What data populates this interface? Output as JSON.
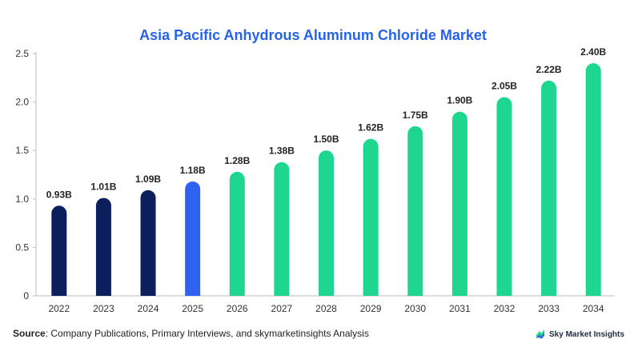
{
  "chart_data": {
    "type": "bar",
    "title": "Asia Pacific Anhydrous Aluminum Chloride Market",
    "xlabel": "",
    "ylabel": "",
    "categories": [
      "2022",
      "2023",
      "2024",
      "2025",
      "2026",
      "2027",
      "2028",
      "2029",
      "2030",
      "2031",
      "2032",
      "2033",
      "2034"
    ],
    "values": [
      0.93,
      1.01,
      1.09,
      1.18,
      1.28,
      1.38,
      1.5,
      1.62,
      1.75,
      1.9,
      2.05,
      2.22,
      2.4
    ],
    "value_labels": [
      "0.93B",
      "1.01B",
      "1.09B",
      "1.18B",
      "1.28B",
      "1.38B",
      "1.50B",
      "1.62B",
      "1.75B",
      "1.90B",
      "2.05B",
      "2.22B",
      "2.40B"
    ],
    "bar_colors": [
      "#0b1f5c",
      "#0b1f5c",
      "#0b1f5c",
      "#2f62f0",
      "#1ed68f",
      "#1ed68f",
      "#1ed68f",
      "#1ed68f",
      "#1ed68f",
      "#1ed68f",
      "#1ed68f",
      "#1ed68f",
      "#1ed68f"
    ],
    "ylim": [
      0,
      2.5
    ],
    "yticks": [
      "0",
      "0.5",
      "1.0",
      "1.5",
      "2.0",
      "2.5"
    ],
    "grid": false,
    "legend": "none"
  },
  "footer": {
    "source_label": "Source",
    "source_text": ": Company Publications, Primary Interviews, and skymarketinsights Analysis",
    "brand_text": "Sky Market Insights"
  },
  "colors": {
    "title": "#2563eb",
    "historical": "#0b1f5c",
    "base_year": "#2f62f0",
    "forecast": "#1ed68f"
  },
  "icons": {
    "brand_logo": "sky-market-insights-logo-icon"
  }
}
